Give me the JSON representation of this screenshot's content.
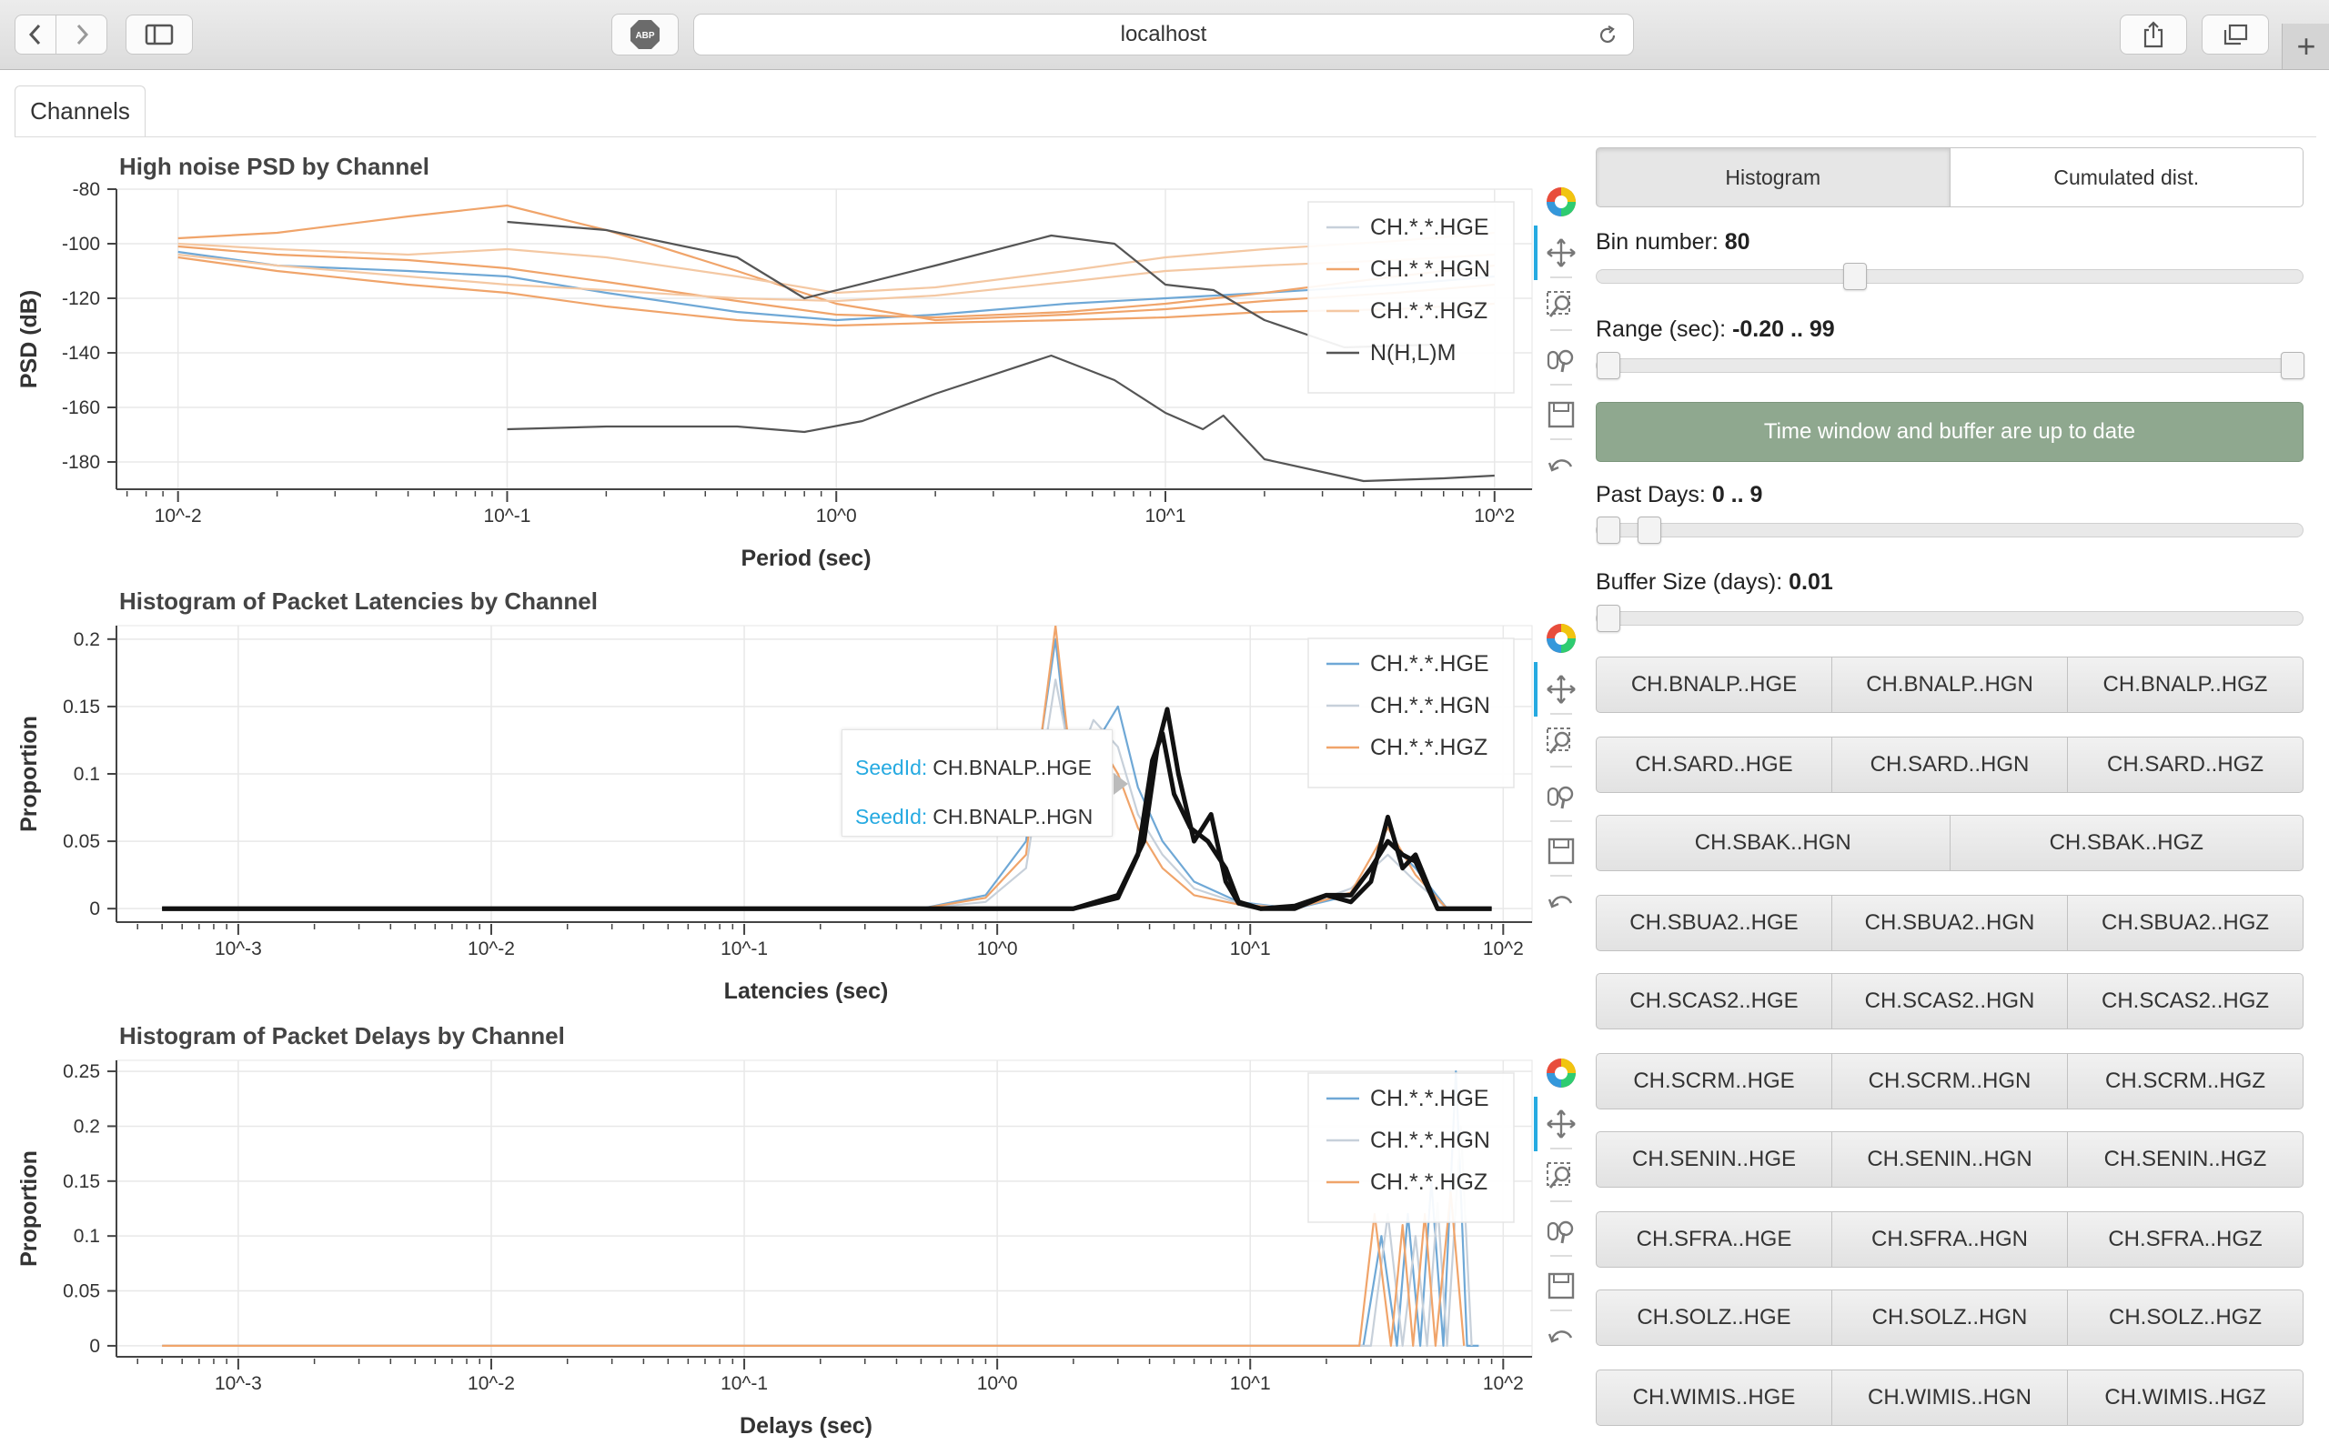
{
  "browser": {
    "url": "localhost",
    "abp_label": "ABP"
  },
  "tabs": [
    {
      "label": "Channels"
    }
  ],
  "plots": [
    {
      "title": "High noise PSD by Channel",
      "xlabel": "Period (sec)",
      "ylabel": "PSD (dB)",
      "legend": [
        "CH.*.*.HGE",
        "CH.*.*.HGN",
        "CH.*.*.HGZ",
        "N(H,L)M"
      ]
    },
    {
      "title": "Histogram of Packet Latencies by Channel",
      "xlabel": "Latencies (sec)",
      "ylabel": "Proportion",
      "legend": [
        "CH.*.*.HGE",
        "CH.*.*.HGN",
        "CH.*.*.HGZ"
      ]
    },
    {
      "title": "Histogram of Packet Delays by Channel",
      "xlabel": "Delays (sec)",
      "ylabel": "Proportion",
      "legend": [
        "CH.*.*.HGE",
        "CH.*.*.HGN",
        "CH.*.*.HGZ"
      ]
    }
  ],
  "tooltip": {
    "key": "SeedId:",
    "rows": [
      "CH.BNALP..HGE",
      "CH.BNALP..HGN"
    ]
  },
  "controls": {
    "modes": [
      "Histogram",
      "Cumulated dist."
    ],
    "active_mode": "Histogram",
    "bin_label": "Bin number:",
    "bin_value": "80",
    "bin_fraction": 0.36,
    "range_label": "Range (sec):",
    "range_value": "-0.20 .. 99",
    "range_fraction_low": 0.0,
    "range_fraction_high": 1.0,
    "status_text": "Time window and buffer are up to date",
    "past_days_label": "Past Days:",
    "past_days_value": "0 .. 9",
    "past_days_fraction_low": 0.0,
    "past_days_fraction_high": 0.06,
    "buffer_label": "Buffer Size (days):",
    "buffer_value": "0.01",
    "buffer_fraction": 0.0
  },
  "channel_rows": [
    [
      "CH.BNALP..HGE",
      "CH.BNALP..HGN",
      "CH.BNALP..HGZ"
    ],
    [
      "CH.SARD..HGE",
      "CH.SARD..HGN",
      "CH.SARD..HGZ"
    ],
    [
      "CH.SBAK..HGN",
      "CH.SBAK..HGZ"
    ],
    [
      "CH.SBUA2..HGE",
      "CH.SBUA2..HGN",
      "CH.SBUA2..HGZ"
    ],
    [
      "CH.SCAS2..HGE",
      "CH.SCAS2..HGN",
      "CH.SCAS2..HGZ"
    ],
    [
      "CH.SCRM..HGE",
      "CH.SCRM..HGN",
      "CH.SCRM..HGZ"
    ],
    [
      "CH.SENIN..HGE",
      "CH.SENIN..HGN",
      "CH.SENIN..HGZ"
    ],
    [
      "CH.SFRA..HGE",
      "CH.SFRA..HGN",
      "CH.SFRA..HGZ"
    ],
    [
      "CH.SOLZ..HGE",
      "CH.SOLZ..HGN",
      "CH.SOLZ..HGZ"
    ],
    [
      "CH.WIMIS..HGE",
      "CH.WIMIS..HGN",
      "CH.WIMIS..HGZ"
    ]
  ],
  "colors": {
    "hge": "#6fa8d6",
    "hgn": "#c7d0da",
    "hgz": "#f0a46a",
    "noise_model": "#555555",
    "status_bg": "#8fa88f"
  },
  "toolbar_icons": [
    "bokeh-logo-icon",
    "pan-icon",
    "box-zoom-icon",
    "wheel-zoom-icon",
    "save-icon",
    "reset-icon"
  ],
  "chart_data": [
    {
      "type": "line",
      "title": "High noise PSD by Channel",
      "xlabel": "Period (sec)",
      "ylabel": "PSD (dB)",
      "x_scale": "log",
      "xlim": [
        0.0065,
        130
      ],
      "ylim": [
        -190,
        -80
      ],
      "x_ticks": [
        "10^-2",
        "10^-1",
        "10^0",
        "10^1",
        "10^2"
      ],
      "y_ticks": [
        -80,
        -100,
        -120,
        -140,
        -160,
        -180
      ],
      "grid": true,
      "legend_position": "top-right",
      "series": [
        {
          "name": "CH.*.*.HGE",
          "color": "#6fa8d6",
          "x": [
            0.01,
            0.02,
            0.05,
            0.1,
            0.2,
            0.5,
            1,
            2,
            5,
            10,
            20,
            50,
            100
          ],
          "y": [
            -103,
            -108,
            -110,
            -112,
            -118,
            -125,
            -128,
            -126,
            -122,
            -120,
            -118,
            -115,
            -112
          ]
        },
        {
          "name": "CH.*.*.HGN",
          "color": "#f0a46a",
          "x": [
            0.01,
            0.02,
            0.05,
            0.1,
            0.2,
            0.5,
            1,
            2,
            5,
            10,
            20,
            50,
            100
          ],
          "y": [
            -98,
            -96,
            -90,
            -86,
            -95,
            -110,
            -122,
            -128,
            -126,
            -124,
            -121,
            -118,
            -115
          ]
        },
        {
          "name": "CH.*.*.HGN",
          "color": "#f0a46a",
          "x": [
            0.01,
            0.02,
            0.05,
            0.1,
            0.2,
            0.5,
            1,
            2,
            5,
            10,
            20,
            50,
            100
          ],
          "y": [
            -105,
            -110,
            -115,
            -118,
            -123,
            -128,
            -130,
            -129,
            -128,
            -127,
            -125,
            -124,
            -122
          ]
        },
        {
          "name": "CH.*.*.HGN",
          "color": "#f0a46a",
          "x": [
            0.01,
            0.02,
            0.05,
            0.1,
            0.2,
            0.5,
            1,
            2,
            5,
            10,
            20,
            50,
            100
          ],
          "y": [
            -101,
            -104,
            -106,
            -109,
            -114,
            -121,
            -126,
            -127,
            -125,
            -122,
            -118,
            -112,
            -108
          ]
        },
        {
          "name": "CH.*.*.HGZ",
          "color": "#f4c8a3",
          "x": [
            0.01,
            0.02,
            0.05,
            0.1,
            0.2,
            0.5,
            1,
            2,
            5,
            10,
            20,
            50,
            100
          ],
          "y": [
            -100,
            -102,
            -104,
            -102,
            -105,
            -112,
            -118,
            -116,
            -110,
            -105,
            -102,
            -99,
            -96
          ]
        },
        {
          "name": "CH.*.*.HGZ",
          "color": "#f4c8a3",
          "x": [
            0.01,
            0.02,
            0.05,
            0.1,
            0.2,
            0.5,
            1,
            2,
            5,
            10,
            20,
            50,
            100
          ],
          "y": [
            -104,
            -108,
            -112,
            -115,
            -117,
            -120,
            -121,
            -119,
            -114,
            -110,
            -108,
            -106,
            -104
          ]
        },
        {
          "name": "N(H,L)M",
          "color": "#555555",
          "x": [
            0.1,
            0.2,
            0.5,
            0.8,
            2,
            4.5,
            7,
            10,
            14,
            20,
            35,
            65
          ],
          "y": [
            -92,
            -95,
            -105,
            -120,
            -108,
            -97,
            -100,
            -115,
            -117,
            -128,
            -138,
            -137
          ]
        },
        {
          "name": "N(H,L)M",
          "color": "#555555",
          "x": [
            0.1,
            0.2,
            0.5,
            0.8,
            1.2,
            2,
            4.5,
            7,
            10,
            13,
            15,
            20,
            40,
            70,
            100
          ],
          "y": [
            -168,
            -167,
            -167,
            -169,
            -165,
            -155,
            -141,
            -150,
            -162,
            -168,
            -163,
            -179,
            -187,
            -186,
            -185
          ]
        }
      ]
    },
    {
      "type": "line",
      "title": "Histogram of Packet Latencies by Channel",
      "xlabel": "Latencies (sec)",
      "ylabel": "Proportion",
      "x_scale": "log",
      "xlim": [
        0.00033,
        130
      ],
      "ylim": [
        -0.01,
        0.21
      ],
      "x_ticks": [
        "10^-3",
        "10^-2",
        "10^-1",
        "10^0",
        "10^1",
        "10^2"
      ],
      "y_ticks": [
        0,
        0.05,
        0.1,
        0.15,
        0.2
      ],
      "grid": true,
      "legend_position": "top-right",
      "series": [
        {
          "name": "CH.*.*.HGE",
          "color": "#6fa8d6",
          "x": [
            0.0005,
            0.5,
            0.9,
            1.3,
            1.7,
            2.0,
            2.4,
            3.0,
            3.6,
            4.5,
            6,
            9,
            15,
            25,
            35,
            45,
            60,
            90
          ],
          "y": [
            0,
            0,
            0.01,
            0.05,
            0.2,
            0.08,
            0.12,
            0.15,
            0.09,
            0.05,
            0.02,
            0.005,
            0,
            0.01,
            0.05,
            0.03,
            0,
            0
          ]
        },
        {
          "name": "CH.*.*.HGN",
          "color": "#c7d0da",
          "x": [
            0.0005,
            0.5,
            0.9,
            1.3,
            1.7,
            2.0,
            2.4,
            3.0,
            3.6,
            4.5,
            6,
            9,
            15,
            25,
            35,
            45,
            60,
            90
          ],
          "y": [
            0,
            0,
            0.005,
            0.03,
            0.17,
            0.1,
            0.14,
            0.12,
            0.07,
            0.04,
            0.015,
            0.004,
            0,
            0.015,
            0.04,
            0.02,
            0,
            0
          ]
        },
        {
          "name": "CH.*.*.HGZ",
          "color": "#f0a46a",
          "x": [
            0.0005,
            0.5,
            0.9,
            1.3,
            1.7,
            2.0,
            2.4,
            3.0,
            3.6,
            4.5,
            6,
            9,
            15,
            25,
            35,
            45,
            60,
            90
          ],
          "y": [
            0,
            0,
            0.008,
            0.04,
            0.21,
            0.09,
            0.13,
            0.1,
            0.06,
            0.03,
            0.01,
            0.003,
            0,
            0.012,
            0.06,
            0.025,
            0,
            0
          ]
        },
        {
          "name": "",
          "color": "#111111",
          "x": [
            0.0005,
            1,
            2,
            3,
            3.8,
            4.3,
            4.7,
            5.2,
            6,
            7,
            8,
            9,
            11,
            15,
            20,
            25,
            30,
            35,
            40,
            45,
            55,
            70,
            90
          ],
          "y": [
            0,
            0,
            0,
            0.01,
            0.05,
            0.12,
            0.148,
            0.1,
            0.05,
            0.07,
            0.02,
            0.004,
            0,
            0,
            0.01,
            0.005,
            0.02,
            0.068,
            0.03,
            0.04,
            0,
            0,
            0
          ]
        },
        {
          "name": "",
          "color": "#111111",
          "x": [
            0.0005,
            1,
            2,
            3,
            3.6,
            4.1,
            4.5,
            5.0,
            5.8,
            6.8,
            8,
            9,
            11,
            15,
            20,
            25,
            30,
            35,
            40,
            45,
            55,
            70,
            90
          ],
          "y": [
            0,
            0,
            0,
            0.008,
            0.04,
            0.11,
            0.13,
            0.085,
            0.06,
            0.05,
            0.03,
            0.005,
            0,
            0.002,
            0.01,
            0.01,
            0.03,
            0.05,
            0.04,
            0.035,
            0,
            0,
            0
          ]
        }
      ]
    },
    {
      "type": "line",
      "title": "Histogram of Packet Delays by Channel",
      "xlabel": "Delays (sec)",
      "ylabel": "Proportion",
      "x_scale": "log",
      "xlim": [
        0.00033,
        130
      ],
      "ylim": [
        -0.01,
        0.26
      ],
      "x_ticks": [
        "10^-3",
        "10^-2",
        "10^-1",
        "10^0",
        "10^1",
        "10^2"
      ],
      "y_ticks": [
        0,
        0.05,
        0.1,
        0.15,
        0.2,
        0.25
      ],
      "grid": true,
      "legend_position": "top-right",
      "series": [
        {
          "name": "CH.*.*.HGE",
          "color": "#6fa8d6",
          "x": [
            0.0005,
            28,
            33,
            38,
            42,
            47,
            52,
            58,
            65,
            72,
            80
          ],
          "y": [
            0,
            0,
            0.1,
            0,
            0.12,
            0,
            0.15,
            0,
            0.25,
            0,
            0
          ]
        },
        {
          "name": "CH.*.*.HGN",
          "color": "#c7d0da",
          "x": [
            0.0005,
            30,
            35,
            40,
            45,
            50,
            55,
            60,
            68,
            75
          ],
          "y": [
            0,
            0,
            0.12,
            0,
            0.1,
            0,
            0.13,
            0,
            0.2,
            0
          ]
        },
        {
          "name": "CH.*.*.HGZ",
          "color": "#f0a46a",
          "x": [
            0.0005,
            27,
            31,
            36,
            40,
            44,
            49,
            54,
            62,
            70
          ],
          "y": [
            0,
            0,
            0.12,
            0,
            0.11,
            0,
            0.12,
            0,
            0.14,
            0
          ]
        }
      ]
    }
  ]
}
